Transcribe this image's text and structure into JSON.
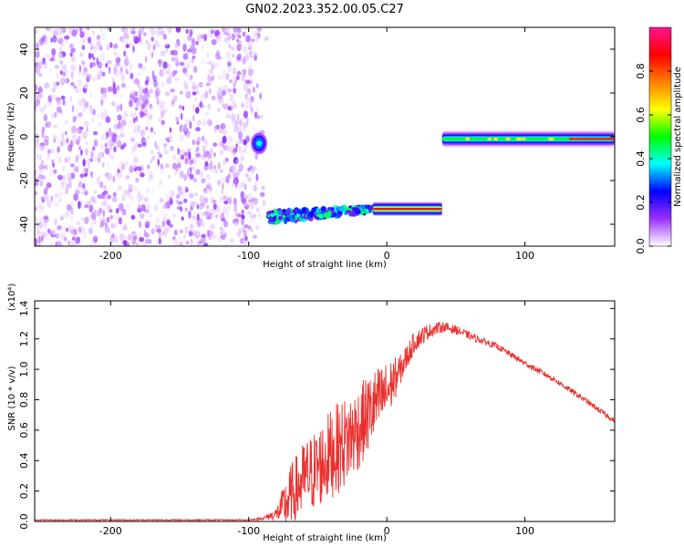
{
  "title": "GN02.2023.352.00.05.C27",
  "chart_data": [
    {
      "type": "heatmap",
      "xlabel": "Height of straight line (km)",
      "ylabel": "Frequency (Hz)",
      "xlim": [
        -255,
        165
      ],
      "ylim": [
        -50,
        50
      ],
      "xticks": [
        -200,
        -100,
        0,
        100
      ],
      "yticks": [
        -40,
        -20,
        0,
        20,
        40
      ],
      "colorbar": {
        "label": "Normalized spectral amplitude",
        "range": [
          0,
          1
        ],
        "ticks": [
          "0.0",
          "0.2",
          "0.4",
          "0.6",
          "0.8"
        ],
        "stops": [
          "#ffffff",
          "#9b30ff",
          "#0000ff",
          "#00ffff",
          "#00ff00",
          "#ffff00",
          "#ff7f00",
          "#ff0000",
          "#ff1493"
        ]
      },
      "features": [
        {
          "name": "noise region",
          "x_range": [
            -255,
            -93
          ],
          "y_range": [
            -50,
            50
          ],
          "amplitude": 0.05
        },
        {
          "name": "blob near 0 Hz",
          "x_range": [
            -100,
            -85
          ],
          "y_center": -3,
          "amplitude": 0.3
        },
        {
          "name": "negative-frequency track (noisy)",
          "x_range": [
            -85,
            -10
          ],
          "y_start": -37,
          "y_end": -33,
          "amplitude": 0.45
        },
        {
          "name": "negative-frequency track (strong)",
          "x_range": [
            -10,
            40
          ],
          "y_center": -33,
          "amplitude": 0.95
        },
        {
          "name": "zero-frequency track",
          "x_range": [
            40,
            165
          ],
          "y_center": -1,
          "amplitude": 0.55
        }
      ]
    },
    {
      "type": "line",
      "xlabel": "Height of straight line (km)",
      "ylabel": "SNR (10 * v/v)",
      "y_multiplier": "(x10⁴)",
      "xlim": [
        -255,
        165
      ],
      "ylim": [
        0,
        1.45
      ],
      "xticks": [
        -200,
        -100,
        0,
        100
      ],
      "yticks": [
        "0.0",
        "0.2",
        "0.4",
        "0.6",
        "0.8",
        "1.0",
        "1.2",
        "1.4"
      ],
      "color": "#e8312f",
      "series": [
        {
          "x": [
            -255,
            -200,
            -150,
            -100,
            -90,
            -80,
            -70,
            -60,
            -50,
            -40,
            -30,
            -20,
            -10,
            0,
            10,
            20,
            30,
            40,
            50,
            60,
            80,
            100,
            120,
            140,
            165
          ],
          "y": [
            0.01,
            0.01,
            0.01,
            0.01,
            0.02,
            0.05,
            0.15,
            0.28,
            0.35,
            0.45,
            0.52,
            0.62,
            0.75,
            0.85,
            1.0,
            1.18,
            1.25,
            1.28,
            1.26,
            1.22,
            1.15,
            1.04,
            0.94,
            0.82,
            0.66
          ],
          "noise": [
            0.004,
            0.004,
            0.004,
            0.004,
            0.01,
            0.04,
            0.22,
            0.25,
            0.27,
            0.3,
            0.3,
            0.28,
            0.25,
            0.2,
            0.1,
            0.07,
            0.05,
            0.035,
            0.03,
            0.025,
            0.02,
            0.02,
            0.018,
            0.018,
            0.018
          ]
        }
      ]
    }
  ]
}
